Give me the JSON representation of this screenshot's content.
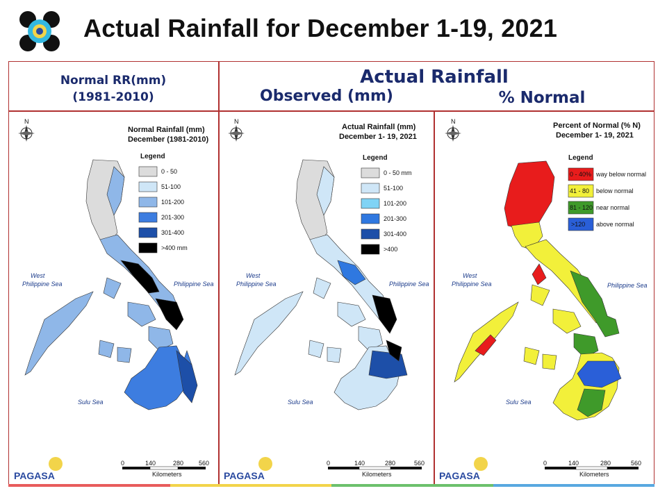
{
  "title": "Actual Rainfall for December 1-19, 2021",
  "headers": {
    "normal": [
      "Normal RR(mm)",
      "(1981-2010)"
    ],
    "actual": "Actual Rainfall",
    "observed": "Observed (mm)",
    "percent": "% Normal"
  },
  "panels": [
    {
      "title": [
        "Normal Rainfall (mm)",
        "December (1981-2010)"
      ],
      "legend_title": "Legend",
      "legend": [
        {
          "label": "0 - 50",
          "color": "#dcdcdc"
        },
        {
          "label": "51-100",
          "color": "#cfe6f7"
        },
        {
          "label": "101-200",
          "color": "#8fb7e8"
        },
        {
          "label": "201-300",
          "color": "#3d7de0"
        },
        {
          "label": "301-400",
          "color": "#1d4fa8"
        },
        {
          "label": ">400 mm",
          "color": "#000000"
        }
      ]
    },
    {
      "title": [
        "Actual Rainfall (mm)",
        "December 1- 19, 2021"
      ],
      "legend_title": "Legend",
      "legend": [
        {
          "label": "0 - 50 mm",
          "color": "#dcdcdc"
        },
        {
          "label": "51-100",
          "color": "#cfe6f7"
        },
        {
          "label": "101-200",
          "color": "#7fd3f5"
        },
        {
          "label": "201-300",
          "color": "#2f78e0"
        },
        {
          "label": "301-400",
          "color": "#1d4fa8"
        },
        {
          "label": ">400",
          "color": "#000000"
        }
      ]
    },
    {
      "title": [
        "Percent of Normal (% N)",
        "December 1- 19, 2021"
      ],
      "legend_title": "Legend",
      "legend": [
        {
          "label": "way below normal",
          "range": "0 - 40%",
          "color": "#e81c1c"
        },
        {
          "label": "below normal",
          "range": "41 - 80",
          "color": "#f2f03a"
        },
        {
          "label": "near normal",
          "range": "81 - 120",
          "color": "#3f9a2a"
        },
        {
          "label": "above normal",
          "range": ">120",
          "color": "#2a5fd8"
        }
      ]
    }
  ],
  "map_labels": {
    "west_sea": [
      "West",
      "Philippine Sea"
    ],
    "philippine_sea": "Philippine Sea",
    "sulu_sea": "Sulu Sea"
  },
  "scale": {
    "ticks": [
      "0",
      "140",
      "280",
      "560"
    ],
    "ticks_first": [
      "0",
      "140",
      "280",
      "560"
    ],
    "unit": "Kilometers"
  },
  "agency": "PAGASA",
  "colors": {
    "frame": "#b03030",
    "header_text": "#1a2a6c",
    "bottom_bar": [
      "#e85c5c",
      "#f2d44a",
      "#6cc06c",
      "#58a8e0"
    ]
  }
}
